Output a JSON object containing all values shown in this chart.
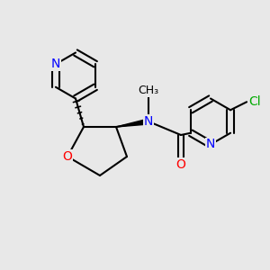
{
  "background": "#e8e8e8",
  "fig_width": 3.0,
  "fig_height": 3.0,
  "dpi": 100,
  "atom_colors": {
    "N": "#0000ff",
    "O": "#ff0000",
    "Cl": "#00aa00",
    "C": "#000000"
  },
  "bond_color": "#000000",
  "bond_width": 1.5,
  "font_size": 10
}
